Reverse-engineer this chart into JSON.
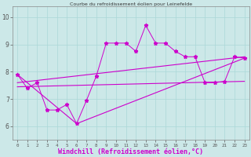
{
  "title": "Courbe du refroidissement éolien pour Leinefelde",
  "xlabel": "Windchill (Refroidissement éolien,°C)",
  "background_color": "#cce8e8",
  "line_color": "#cc00cc",
  "x_ticks": [
    0,
    1,
    2,
    3,
    4,
    5,
    6,
    7,
    8,
    9,
    10,
    11,
    12,
    13,
    14,
    15,
    16,
    17,
    18,
    19,
    20,
    21,
    22,
    23
  ],
  "x_tick_labels": [
    "0",
    "1",
    "2",
    "3",
    "4",
    "5",
    "6",
    "7",
    "8",
    "9",
    "10",
    "11",
    "12",
    "13",
    "14",
    "15",
    "16",
    "17",
    "18",
    "19",
    "20",
    "21",
    "22",
    "23"
  ],
  "ylim": [
    5.5,
    10.4
  ],
  "xlim": [
    -0.5,
    23.5
  ],
  "yticks": [
    6,
    7,
    8,
    9,
    10
  ],
  "series1": [
    7.9,
    7.4,
    7.6,
    6.6,
    6.6,
    6.8,
    6.1,
    6.95,
    7.85,
    9.05,
    9.05,
    9.05,
    8.75,
    9.7,
    9.05,
    9.05,
    8.75,
    8.55,
    8.55,
    7.6,
    7.6,
    7.65,
    8.55,
    8.5
  ],
  "series2_x": [
    0,
    6,
    23
  ],
  "series2_y": [
    7.9,
    6.1,
    8.5
  ],
  "series3_x": [
    0,
    23
  ],
  "series3_y": [
    7.45,
    7.65
  ],
  "series4_x": [
    0,
    23
  ],
  "series4_y": [
    7.6,
    8.55
  ],
  "grid_color": "#aad8d8",
  "xlabel_fontsize": 6,
  "xlabel_color": "#cc00cc",
  "tick_fontsize_x": 4.2,
  "tick_fontsize_y": 5.5
}
